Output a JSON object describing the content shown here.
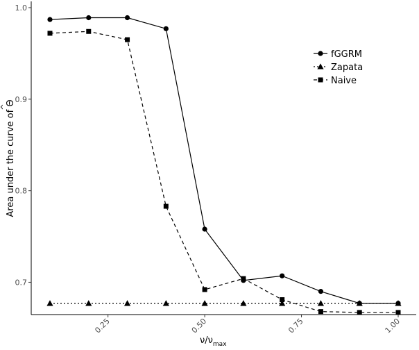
{
  "chart_data": {
    "type": "line",
    "xlabel": "ν/ν",
    "xlabel_sub": "max",
    "ylabel": "Area under the curve of ",
    "ylabel_symbol": "Θ",
    "ylabel_hat": "^",
    "xlim": [
      0.1,
      1.0
    ],
    "ylim": [
      0.67,
      1.0
    ],
    "x_ticks": [
      0.25,
      0.5,
      0.75,
      1.0
    ],
    "x_tick_labels": [
      "0.25",
      "0.50",
      "0.75",
      "1.00"
    ],
    "y_ticks": [
      0.7,
      0.8,
      0.9,
      1.0
    ],
    "y_tick_labels": [
      "0.7",
      "0.8",
      "0.9",
      "1.0"
    ],
    "grid": false,
    "legend_position": "top-right",
    "x": [
      0.1,
      0.2,
      0.3,
      0.4,
      0.5,
      0.6,
      0.7,
      0.8,
      0.9,
      1.0
    ],
    "series": [
      {
        "name": "fGGRM",
        "marker": "circle",
        "dash": "solid",
        "values": [
          0.987,
          0.989,
          0.989,
          0.977,
          0.758,
          0.702,
          0.707,
          0.69,
          0.677,
          0.677
        ]
      },
      {
        "name": "Zapata",
        "marker": "triangle",
        "dash": "dotted",
        "values": [
          0.677,
          0.677,
          0.677,
          0.677,
          0.677,
          0.677,
          0.677,
          0.677,
          0.677,
          0.677
        ]
      },
      {
        "name": "Naive",
        "marker": "square",
        "dash": "dashed",
        "values": [
          0.972,
          0.974,
          0.965,
          0.783,
          0.692,
          0.704,
          0.681,
          0.668,
          0.667,
          0.667
        ]
      }
    ]
  }
}
